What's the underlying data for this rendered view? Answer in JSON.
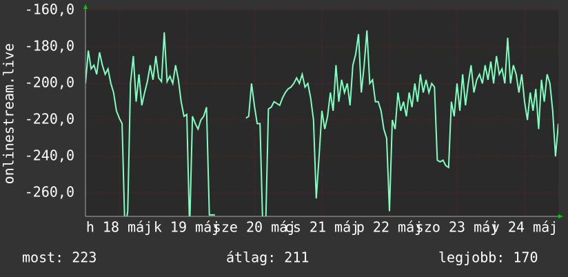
{
  "chart_data": {
    "type": "line",
    "y_label": "onlinestream.live",
    "x": [
      0,
      1,
      2,
      3,
      4,
      5,
      6,
      7,
      8,
      9,
      10,
      11,
      12,
      13,
      14,
      15,
      16,
      17,
      18,
      19,
      20,
      21,
      22,
      23,
      24,
      25,
      26,
      27,
      28,
      29,
      30,
      31,
      32,
      33,
      34,
      35,
      36,
      37,
      38,
      39,
      40,
      41,
      42,
      43,
      44,
      45,
      46,
      47,
      48,
      49,
      50,
      51,
      52,
      53,
      54,
      55,
      56,
      57,
      58,
      59,
      60,
      61,
      62,
      63,
      64,
      65,
      66,
      67,
      68,
      69,
      70,
      71,
      72,
      73,
      74,
      75,
      76,
      77,
      78,
      79,
      80,
      81,
      82,
      83,
      84,
      85,
      86,
      87,
      88,
      89,
      90,
      91,
      92,
      93,
      94,
      95,
      96,
      97,
      98,
      99,
      100,
      101,
      102,
      103,
      104,
      105,
      106,
      107,
      108,
      109,
      110,
      111,
      112,
      113,
      114,
      115,
      116,
      117,
      118,
      119,
      120,
      121,
      122,
      123,
      124,
      125,
      126,
      127,
      128,
      129,
      130,
      131,
      132,
      133,
      134,
      135,
      136,
      137,
      138,
      139,
      140,
      141,
      142,
      143,
      144,
      145,
      146,
      147,
      148,
      149,
      150,
      151,
      152,
      153,
      154,
      155,
      156,
      157,
      158,
      159,
      160,
      161,
      162,
      163,
      164,
      165,
      166,
      167,
      168
    ],
    "series": [
      {
        "color": "#80ffc0",
        "values": [
          -200,
          -182,
          -192,
          -190,
          -195,
          -183,
          -190,
          -195,
          -192,
          -200,
          -205,
          -215,
          -219,
          -222,
          -280,
          -270,
          -200,
          -185,
          -210,
          -195,
          -212,
          -205,
          -199,
          -190,
          -198,
          -185,
          -197,
          -199,
          -172,
          -199,
          -196,
          -200,
          -190,
          -198,
          -210,
          -218,
          -217,
          -280,
          -218,
          -222,
          -225,
          -220,
          -218,
          -213,
          -272,
          -272,
          -272,
          null,
          null,
          null,
          null,
          null,
          null,
          null,
          null,
          null,
          null,
          -219,
          -218,
          -200,
          -212,
          -222,
          -222,
          -280,
          -280,
          -214,
          -213,
          -210,
          -211,
          -212,
          -208,
          -205,
          -203,
          -202,
          -200,
          -197,
          -200,
          -195,
          -202,
          -200,
          -208,
          -220,
          -263,
          -240,
          -215,
          -225,
          -218,
          -205,
          -215,
          -190,
          -210,
          -198,
          -205,
          -200,
          -212,
          -190,
          -184,
          -173,
          -205,
          -190,
          -171,
          -200,
          -198,
          -210,
          -210,
          -215,
          -225,
          -230,
          -270,
          -220,
          -225,
          -205,
          -215,
          -210,
          -218,
          -205,
          -213,
          -200,
          -210,
          -195,
          -205,
          -198,
          -205,
          -200,
          -202,
          -242,
          -243,
          -242,
          -245,
          -246,
          -210,
          -218,
          -200,
          -215,
          -195,
          -212,
          -200,
          -190,
          -205,
          -198,
          -195,
          -200,
          -190,
          -198,
          -188,
          -200,
          -185,
          -195,
          -192,
          -200,
          -175,
          -200,
          -190,
          -195,
          -205,
          -195,
          -210,
          -220,
          -205,
          -215,
          -203,
          -225,
          -198,
          -210,
          -195,
          -200,
          -215,
          -240,
          -222
        ]
      }
    ],
    "xlim": [
      0,
      168
    ],
    "xticks": [
      {
        "value": 12,
        "label": "h 18 máj"
      },
      {
        "value": 36,
        "label": "k 19 máj"
      },
      {
        "value": 60,
        "label": "sze 20 máj"
      },
      {
        "value": 84,
        "label": "cs 21 máj"
      },
      {
        "value": 108,
        "label": "p 22 máj"
      },
      {
        "value": 132,
        "label": "szo 23 máj"
      },
      {
        "value": 156,
        "label": "v 24 máj"
      }
    ],
    "ylim": [
      -272.8,
      -159.6
    ],
    "yticks": [
      {
        "value": -160,
        "label": "-160,0"
      },
      {
        "value": -180,
        "label": "-180,0"
      },
      {
        "value": -200,
        "label": "-200,0"
      },
      {
        "value": -220,
        "label": "-220,0"
      },
      {
        "value": -240,
        "label": "-240,0"
      },
      {
        "value": -260,
        "label": "-260,0"
      }
    ],
    "grid": true
  },
  "footer": [
    "most: 223",
    "átlag: 211",
    "legjobb: 170"
  ]
}
